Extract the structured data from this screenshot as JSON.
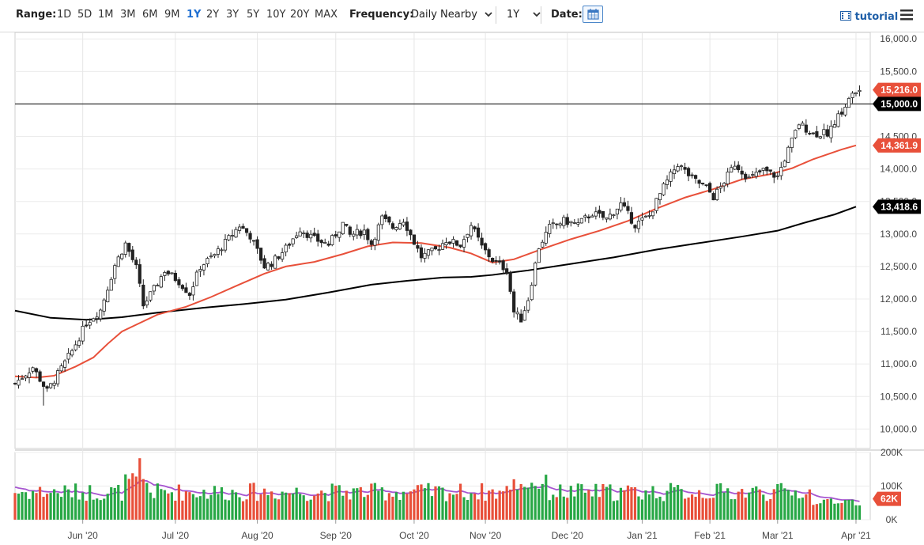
{
  "toolbar": {
    "range_label": "Range:",
    "ranges": [
      "1D",
      "5D",
      "1M",
      "3M",
      "6M",
      "9M",
      "1Y",
      "2Y",
      "3Y",
      "5Y",
      "10Y",
      "20Y",
      "MAX"
    ],
    "active_range": "1Y",
    "frequency_label": "Frequency:",
    "frequency_value": "Daily Nearby",
    "period_value": "1Y",
    "date_label": "Date:",
    "tutorial_label": "tutorial",
    "icons": [
      "calendar-icon",
      "film-icon",
      "menu-icon",
      "chevron-down-icon"
    ]
  },
  "chart_data": {
    "type": "candlestick",
    "price_axis": {
      "ticks": [
        16000,
        15500,
        15000,
        14500,
        14000,
        13500,
        13000,
        12500,
        12000,
        11500,
        11000,
        10500,
        10000
      ],
      "tick_labels": [
        "16,000.0",
        "15,500.0",
        "15,000.0",
        "14,500.0",
        "14,000.0",
        "13,500.0",
        "13,000.0",
        "12,500.0",
        "12,000.0",
        "11,500.0",
        "11,000.0",
        "10,500.0",
        "10,000.0"
      ],
      "range": [
        9700,
        16100
      ]
    },
    "volume_axis": {
      "tick_labels": [
        "200K",
        "100K",
        "0K"
      ],
      "ticks": [
        200000,
        100000,
        0
      ],
      "range": [
        0,
        200000
      ]
    },
    "x_tick_labels": [
      "Jun '20",
      "Jul '20",
      "Aug '20",
      "Sep '20",
      "Oct '20",
      "Nov '20",
      "Dec '20",
      "Jan '21",
      "Feb '21",
      "Mar '21",
      "Apr '21"
    ],
    "x_tick_days": [
      19,
      45,
      68,
      90,
      112,
      132,
      155,
      176,
      195,
      214,
      236
    ],
    "total_days": 240,
    "horizontal_line": {
      "value": 15000,
      "label": "15,000.0",
      "color": "#000000"
    },
    "last_price": {
      "value": 15216.0,
      "label": "15,216.0",
      "color": "#e8503a"
    },
    "ma_fast": {
      "label": "14,361.9",
      "color": "#e8503a",
      "points": [
        [
          0,
          10810
        ],
        [
          6,
          10790
        ],
        [
          11,
          10820
        ],
        [
          17,
          10960
        ],
        [
          22,
          11100
        ],
        [
          26,
          11310
        ],
        [
          30,
          11500
        ],
        [
          35,
          11630
        ],
        [
          40,
          11760
        ],
        [
          48,
          11880
        ],
        [
          55,
          12030
        ],
        [
          62,
          12200
        ],
        [
          70,
          12390
        ],
        [
          76,
          12500
        ],
        [
          84,
          12570
        ],
        [
          92,
          12690
        ],
        [
          99,
          12810
        ],
        [
          106,
          12870
        ],
        [
          114,
          12860
        ],
        [
          122,
          12790
        ],
        [
          128,
          12700
        ],
        [
          134,
          12560
        ],
        [
          140,
          12610
        ],
        [
          148,
          12770
        ],
        [
          156,
          12920
        ],
        [
          164,
          13050
        ],
        [
          172,
          13200
        ],
        [
          180,
          13390
        ],
        [
          188,
          13560
        ],
        [
          196,
          13690
        ],
        [
          204,
          13840
        ],
        [
          212,
          13920
        ],
        [
          218,
          14010
        ],
        [
          224,
          14150
        ],
        [
          232,
          14300
        ],
        [
          236,
          14362
        ]
      ]
    },
    "ma_slow": {
      "label": "13,418.6",
      "color": "#000000",
      "points": [
        [
          0,
          11820
        ],
        [
          10,
          11710
        ],
        [
          20,
          11680
        ],
        [
          30,
          11720
        ],
        [
          40,
          11790
        ],
        [
          52,
          11860
        ],
        [
          64,
          11920
        ],
        [
          76,
          11990
        ],
        [
          88,
          12100
        ],
        [
          100,
          12220
        ],
        [
          110,
          12280
        ],
        [
          120,
          12330
        ],
        [
          128,
          12340
        ],
        [
          134,
          12370
        ],
        [
          144,
          12440
        ],
        [
          156,
          12540
        ],
        [
          168,
          12640
        ],
        [
          180,
          12760
        ],
        [
          192,
          12860
        ],
        [
          204,
          12960
        ],
        [
          214,
          13050
        ],
        [
          222,
          13180
        ],
        [
          230,
          13300
        ],
        [
          236,
          13419
        ]
      ]
    },
    "volume_label": "62K",
    "volume_color_up": "#27a745",
    "volume_color_down": "#e8503a",
    "volume_avg_color": "#a655d0",
    "candle_color_up": "#27a745",
    "candle_color_down": "#e8503a",
    "price_path": [
      [
        0,
        10700
      ],
      [
        5,
        10950
      ],
      [
        9,
        10580
      ],
      [
        13,
        10930
      ],
      [
        16,
        11200
      ],
      [
        20,
        11630
      ],
      [
        24,
        11830
      ],
      [
        28,
        12520
      ],
      [
        31,
        12850
      ],
      [
        34,
        12480
      ],
      [
        36,
        11900
      ],
      [
        39,
        12150
      ],
      [
        42,
        12440
      ],
      [
        46,
        12270
      ],
      [
        49,
        12080
      ],
      [
        52,
        12500
      ],
      [
        56,
        12680
      ],
      [
        60,
        12930
      ],
      [
        63,
        13130
      ],
      [
        66,
        12970
      ],
      [
        70,
        12500
      ],
      [
        72,
        12550
      ],
      [
        76,
        12780
      ],
      [
        80,
        13080
      ],
      [
        84,
        12920
      ],
      [
        88,
        12840
      ],
      [
        92,
        13160
      ],
      [
        94,
        12980
      ],
      [
        98,
        13050
      ],
      [
        100,
        12850
      ],
      [
        103,
        13240
      ],
      [
        106,
        13100
      ],
      [
        109,
        13220
      ],
      [
        112,
        12870
      ],
      [
        114,
        12650
      ],
      [
        118,
        12750
      ],
      [
        121,
        12910
      ],
      [
        125,
        12830
      ],
      [
        128,
        13140
      ],
      [
        131,
        12800
      ],
      [
        134,
        12600
      ],
      [
        138,
        12450
      ],
      [
        140,
        11800
      ],
      [
        142,
        11690
      ],
      [
        144,
        12000
      ],
      [
        147,
        12800
      ],
      [
        150,
        13100
      ],
      [
        154,
        13200
      ],
      [
        158,
        13150
      ],
      [
        162,
        13320
      ],
      [
        166,
        13230
      ],
      [
        170,
        13460
      ],
      [
        174,
        13140
      ],
      [
        178,
        13280
      ],
      [
        182,
        13720
      ],
      [
        186,
        14080
      ],
      [
        190,
        13850
      ],
      [
        194,
        13710
      ],
      [
        196,
        13570
      ],
      [
        198,
        13720
      ],
      [
        202,
        14080
      ],
      [
        206,
        13850
      ],
      [
        210,
        13980
      ],
      [
        214,
        13880
      ],
      [
        216,
        14160
      ],
      [
        220,
        14700
      ],
      [
        224,
        14540
      ],
      [
        228,
        14560
      ],
      [
        232,
        14880
      ],
      [
        235,
        15150
      ],
      [
        237,
        15216
      ]
    ],
    "low_spike": [
      8,
      10360
    ]
  }
}
